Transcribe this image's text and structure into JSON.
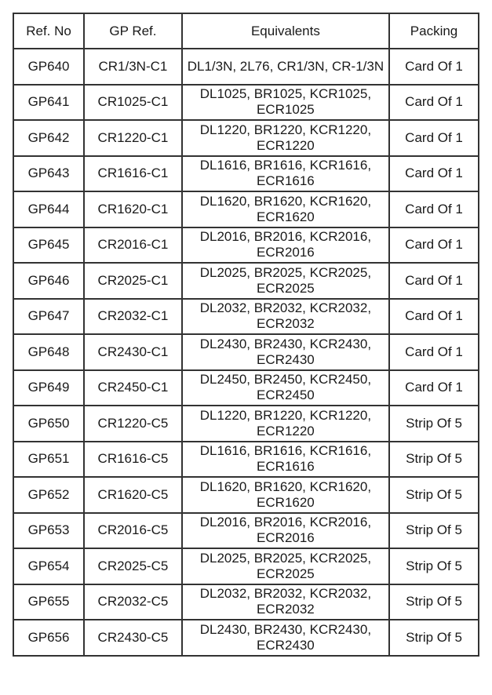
{
  "table": {
    "headers": [
      "Ref. No",
      "GP Ref.",
      "Equivalents",
      "Packing"
    ],
    "rows": [
      [
        "GP640",
        "CR1/3N-C1",
        "DL1/3N, 2L76, CR1/3N, CR-1/3N",
        "Card Of 1"
      ],
      [
        "GP641",
        "CR1025-C1",
        "DL1025, BR1025, KCR1025, ECR1025",
        "Card Of 1"
      ],
      [
        "GP642",
        "CR1220-C1",
        "DL1220, BR1220, KCR1220, ECR1220",
        "Card Of 1"
      ],
      [
        "GP643",
        "CR1616-C1",
        "DL1616, BR1616, KCR1616, ECR1616",
        "Card Of 1"
      ],
      [
        "GP644",
        "CR1620-C1",
        "DL1620, BR1620, KCR1620, ECR1620",
        "Card Of 1"
      ],
      [
        "GP645",
        "CR2016-C1",
        "DL2016, BR2016, KCR2016, ECR2016",
        "Card Of 1"
      ],
      [
        "GP646",
        "CR2025-C1",
        "DL2025, BR2025, KCR2025, ECR2025",
        "Card Of 1"
      ],
      [
        "GP647",
        "CR2032-C1",
        "DL2032, BR2032, KCR2032, ECR2032",
        "Card Of 1"
      ],
      [
        "GP648",
        "CR2430-C1",
        "DL2430, BR2430, KCR2430, ECR2430",
        "Card Of 1"
      ],
      [
        "GP649",
        "CR2450-C1",
        "DL2450, BR2450, KCR2450, ECR2450",
        "Card Of 1"
      ],
      [
        "GP650",
        "CR1220-C5",
        "DL1220, BR1220, KCR1220, ECR1220",
        "Strip Of 5"
      ],
      [
        "GP651",
        "CR1616-C5",
        "DL1616, BR1616, KCR1616, ECR1616",
        "Strip Of 5"
      ],
      [
        "GP652",
        "CR1620-C5",
        "DL1620, BR1620, KCR1620, ECR1620",
        "Strip Of 5"
      ],
      [
        "GP653",
        "CR2016-C5",
        "DL2016, BR2016, KCR2016, ECR2016",
        "Strip Of 5"
      ],
      [
        "GP654",
        "CR2025-C5",
        "DL2025, BR2025, KCR2025, ECR2025",
        "Strip Of 5"
      ],
      [
        "GP655",
        "CR2032-C5",
        "DL2032, BR2032, KCR2032, ECR2032",
        "Strip Of 5"
      ],
      [
        "GP656",
        "CR2430-C5",
        "DL2430, BR2430, KCR2430, ECR2430",
        "Strip Of 5"
      ]
    ]
  }
}
